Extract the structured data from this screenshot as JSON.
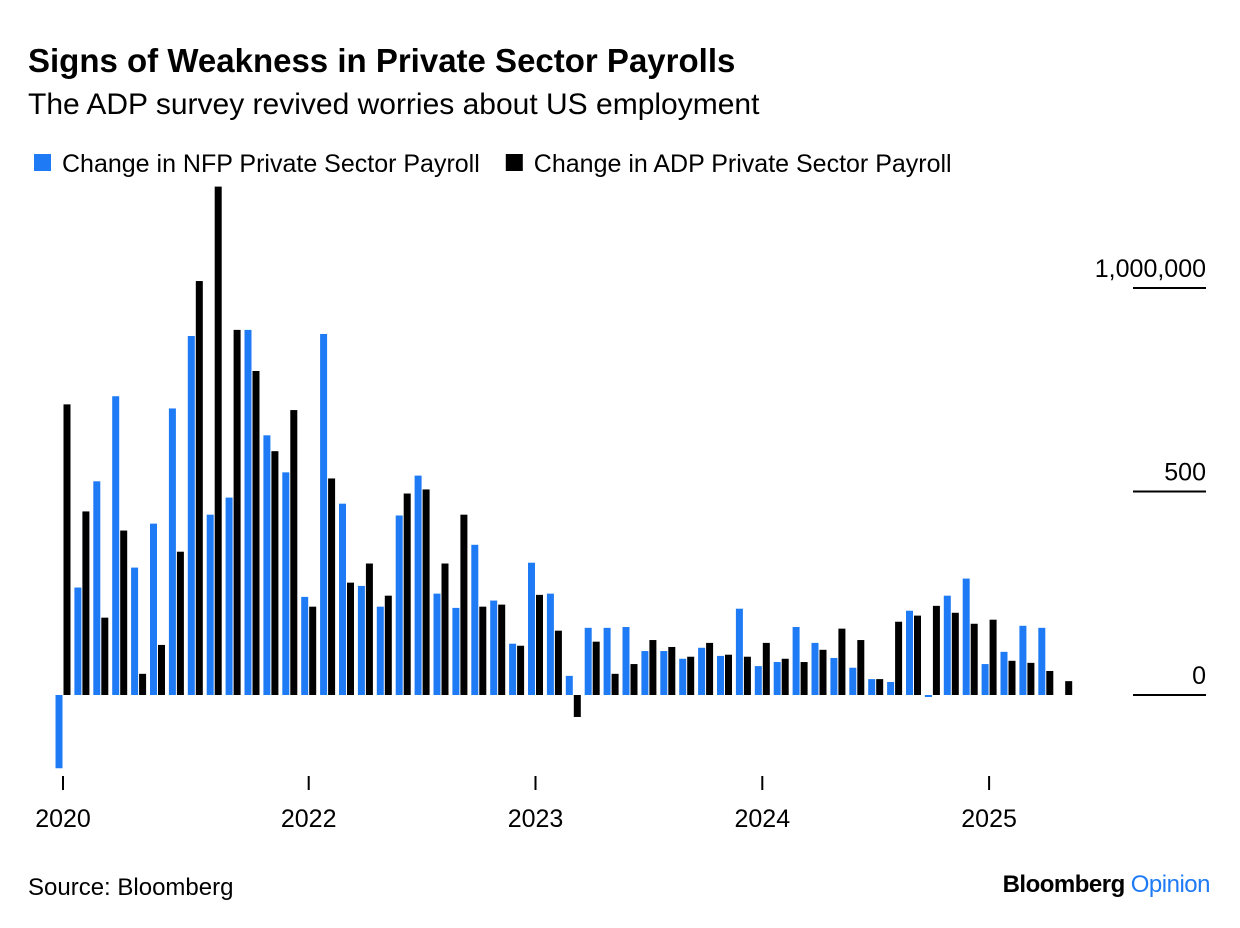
{
  "chart_data": {
    "type": "bar",
    "title": "Signs of Weakness in Private Sector Payrolls",
    "subtitle": "The ADP survey revived worries about US employment",
    "categories": [
      "2020",
      null,
      null,
      null,
      null,
      null,
      null,
      null,
      null,
      null,
      null,
      null,
      null,
      "2022",
      null,
      null,
      null,
      null,
      null,
      null,
      null,
      null,
      null,
      null,
      null,
      "2023",
      null,
      null,
      null,
      null,
      null,
      null,
      null,
      null,
      null,
      null,
      null,
      "2024",
      null,
      null,
      null,
      null,
      null,
      null,
      null,
      null,
      null,
      null,
      null,
      "2025",
      null,
      null,
      null,
      null
    ],
    "series": [
      {
        "name": "Change in NFP Private Sector Payroll",
        "color": "#1f7bf5",
        "values": [
          -180,
          264,
          525,
          734,
          313,
          421,
          704,
          882,
          443,
          485,
          897,
          638,
          547,
          241,
          887,
          470,
          268,
          217,
          441,
          539,
          249,
          214,
          369,
          232,
          126,
          325,
          249,
          47,
          165,
          165,
          167,
          108,
          108,
          89,
          116,
          96,
          212,
          71,
          81,
          167,
          128,
          91,
          67,
          39,
          32,
          207,
          -5,
          244,
          286,
          76,
          106,
          170,
          165,
          null
        ]
      },
      {
        "name": "Change in ADP Private Sector Payroll",
        "color": "#000000",
        "values": [
          714,
          451,
          190,
          404,
          52,
          123,
          352,
          1017,
          1249,
          897,
          796,
          599,
          700,
          217,
          532,
          276,
          323,
          244,
          495,
          505,
          323,
          443,
          217,
          222,
          121,
          246,
          158,
          -54,
          131,
          52,
          76,
          135,
          118,
          94,
          128,
          99,
          94,
          128,
          89,
          81,
          111,
          163,
          135,
          39,
          180,
          195,
          219,
          202,
          175,
          185,
          84,
          79,
          59,
          34
        ]
      }
    ],
    "ylim": [
      -200,
      1250
    ],
    "yticks": [
      {
        "value": 1000,
        "label": "1,000,000"
      },
      500,
      0
    ],
    "legend": "top-left",
    "source": "Source: Bloomberg",
    "credit": [
      "Bloomberg",
      "Opinion"
    ]
  }
}
